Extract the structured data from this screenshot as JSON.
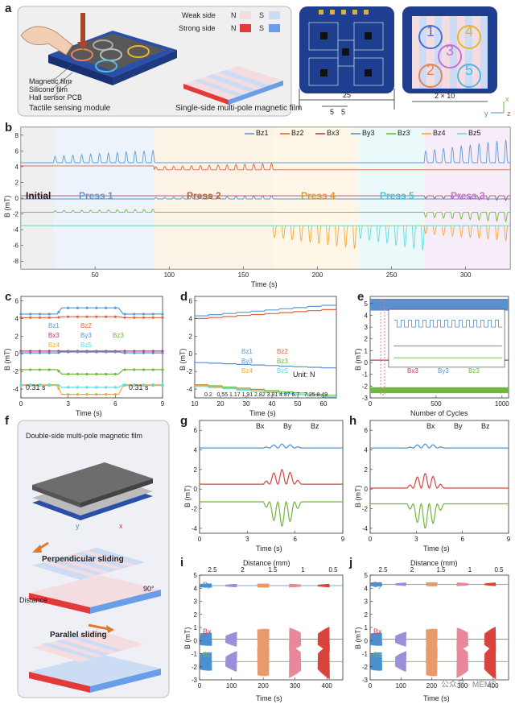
{
  "panel_a": {
    "letter": "a",
    "chip_numbers": [
      "1",
      "2",
      "3",
      "4",
      "5"
    ],
    "module_labels": [
      "Magnetic film",
      "Silicone film",
      "Hall sensor PCB"
    ],
    "module_caption": "Tactile sensing module",
    "legend_weak": "Weak side",
    "legend_strong": "Strong side",
    "pole_n": "N",
    "pole_s": "S",
    "film_caption": "Single-side multi-pole magnetic film",
    "dim_25": "25",
    "dim_5a": "5",
    "dim_5b": "5",
    "dim_2x10": "2 × 10",
    "axis_y": "y",
    "axis_x": "x",
    "axis_z": "z"
  },
  "panel_b": {
    "letter": "b",
    "legend": [
      "Bz1",
      "Bz2",
      "Bx3",
      "By3",
      "Bz3",
      "Bz4",
      "Bz5"
    ],
    "phases": [
      "Initial",
      "Press 1",
      "Press 2",
      "Press 4",
      "Press 5",
      "Press 3"
    ],
    "ylabel": "B (mT)",
    "xlabel": "Time (s)",
    "yticks": [
      "8",
      "6",
      "4",
      "2",
      "0",
      "-2",
      "-4",
      "-6",
      "-8"
    ],
    "xticks": [
      "50",
      "100",
      "150",
      "200",
      "250",
      "300"
    ]
  },
  "panel_c": {
    "letter": "c",
    "legend": [
      "Bz1",
      "Bz2",
      "Bx3",
      "By3",
      "Bz3",
      "Bz4",
      "Bz5"
    ],
    "ann_left": "0.31 s",
    "ann_right": "0.31 s",
    "ylabel": "B (mT)",
    "xlabel": "Time (s)",
    "yticks": [
      "6",
      "4",
      "2",
      "0",
      "-2",
      "-4"
    ],
    "xticks": [
      "0",
      "3",
      "6",
      "9"
    ]
  },
  "panel_d": {
    "letter": "d",
    "legend": [
      "Bz1",
      "Bz2",
      "By3",
      "Bz3",
      "Bz4",
      "Bz5"
    ],
    "unit": "Unit: N",
    "force_values": [
      "0.2",
      "0.55",
      "1.17",
      "1.91",
      "2.82",
      "3.81",
      "4.87",
      "6.7",
      "7.25",
      "8.49"
    ],
    "ylabel": "B (mT)",
    "xlabel": "Time (s)",
    "yticks": [
      "6",
      "4",
      "2",
      "0",
      "-2",
      "-4"
    ],
    "xticks": [
      "10",
      "20",
      "30",
      "40",
      "50",
      "60"
    ]
  },
  "panel_e": {
    "letter": "e",
    "legend": [
      "Bx3",
      "By3",
      "Bz3"
    ],
    "ylabel": "B (mT)",
    "xlabel": "Number of Cycles",
    "yticks": [
      "5",
      "4",
      "3",
      "2",
      "1",
      "0",
      "-1",
      "-2",
      "-3"
    ],
    "xticks": [
      "0",
      "500",
      "1000"
    ],
    "inset_yticks": [
      "6",
      "4",
      "2",
      "0",
      "-2"
    ]
  },
  "panel_f": {
    "letter": "f",
    "title_film": "Double-side multi-pole magnetic film",
    "title_perp": "Perpendicular sliding",
    "title_par": "Parallel sliding",
    "distance": "Distance",
    "angle": "90°",
    "axis_y": "y",
    "axis_x": "x"
  },
  "panel_g": {
    "letter": "g",
    "legend": [
      "Bx",
      "By",
      "Bz"
    ],
    "ylabel": "B (mT)",
    "xlabel": "Time (s)",
    "yticks": [
      "6",
      "4",
      "2",
      "0",
      "-2",
      "-4"
    ],
    "xticks": [
      "0",
      "3",
      "6",
      "9"
    ]
  },
  "panel_h": {
    "letter": "h",
    "legend": [
      "Bx",
      "By",
      "Bz"
    ],
    "ylabel": "B (mT)",
    "xlabel": "Time (s)",
    "yticks": [
      "6",
      "4",
      "2",
      "0",
      "-2",
      "-4"
    ],
    "xticks": [
      "0",
      "3",
      "6",
      "9"
    ]
  },
  "panel_i": {
    "letter": "i",
    "top_label": "Distance (mm)",
    "top_ticks": [
      "2.5",
      "2",
      "1.5",
      "1",
      "0.5"
    ],
    "series_labels": [
      "By",
      "Bx",
      "Bz"
    ],
    "ylabel": "B (mT)",
    "xlabel": "Time (s)",
    "yticks": [
      "5",
      "4",
      "3",
      "2",
      "1",
      "0",
      "-1",
      "-2",
      "-3"
    ],
    "xticks": [
      "0",
      "100",
      "200",
      "300",
      "400"
    ]
  },
  "panel_j": {
    "letter": "j",
    "top_label": "Distance (mm)",
    "top_ticks": [
      "2.5",
      "2",
      "1.5",
      "1",
      "0.5"
    ],
    "series_labels": [
      "By",
      "Bx",
      "Bz"
    ],
    "ylabel": "B (mT)",
    "xlabel": "Time (s)",
    "yticks": [
      "5",
      "4",
      "3",
      "2",
      "1",
      "0",
      "-1",
      "-2",
      "-3"
    ],
    "xticks": [
      "0",
      "100",
      "200",
      "300",
      "400"
    ],
    "watermark": "公众号 · MEMS"
  },
  "colors": {
    "Bz1": "#5b9bd5",
    "Bz2": "#e0643c",
    "Bx3": "#b83a6e",
    "By3": "#5a8fd0",
    "Bz3": "#6fb83c",
    "Bz4": "#f0a93c",
    "Bz5": "#5fdce0",
    "Bx": "#d9433c",
    "By": "#4a8fd0",
    "Bz": "#6fb83c",
    "pcb": "#1e3f8f",
    "weak_n": "#f4dde0",
    "weak_s": "#cbdcf4",
    "strong_n": "#e23a3a",
    "strong_s": "#6a9ee8"
  },
  "chart_data": [
    {
      "panel": "b",
      "type": "line",
      "x_range": [
        0,
        330
      ],
      "ylim": [
        -9,
        9
      ],
      "series": [
        {
          "name": "Bz1",
          "baseline": 4.5
        },
        {
          "name": "Bz2",
          "baseline": 4.1
        },
        {
          "name": "Bx3",
          "baseline": 0.3
        },
        {
          "name": "By3",
          "baseline": -0.1
        },
        {
          "name": "Bz3",
          "baseline": -1.8
        },
        {
          "name": "Bz4",
          "baseline": -3.5
        },
        {
          "name": "Bz5",
          "baseline": -3.5
        }
      ]
    },
    {
      "panel": "c",
      "type": "line",
      "x_range": [
        0,
        9
      ],
      "ylim": [
        -5,
        6.5
      ],
      "series": [
        {
          "name": "Bz1",
          "values": [
            4.5,
            5.2
          ]
        },
        {
          "name": "Bz2",
          "values": [
            4.1,
            4.2
          ]
        },
        {
          "name": "Bx3",
          "values": [
            0.3,
            0.3
          ]
        },
        {
          "name": "By3",
          "values": [
            0.1,
            0.2
          ]
        },
        {
          "name": "Bz3",
          "values": [
            -1.8,
            -2.3
          ]
        },
        {
          "name": "Bz4",
          "values": [
            -3.6,
            -4.6
          ]
        },
        {
          "name": "Bz5",
          "values": [
            -3.5,
            -3.8
          ]
        }
      ]
    },
    {
      "panel": "d",
      "type": "line",
      "x_range": [
        10,
        65
      ],
      "ylim": [
        -5,
        6.5
      ],
      "series": [
        {
          "name": "Bz1",
          "values": [
            4.3,
            5.5
          ]
        },
        {
          "name": "Bz2",
          "values": [
            4.0,
            5.0
          ]
        },
        {
          "name": "By3",
          "values": [
            -1.0,
            -1.6
          ]
        },
        {
          "name": "Bz3",
          "values": [
            -3.5,
            -4.7
          ]
        },
        {
          "name": "Bz4",
          "values": [
            -3.6,
            -4.9
          ]
        },
        {
          "name": "Bz5",
          "values": [
            -3.7,
            -4.9
          ]
        }
      ]
    },
    {
      "panel": "e",
      "type": "line",
      "x_range": [
        0,
        1050
      ],
      "ylim": [
        -3,
        5.6
      ],
      "series": [
        {
          "name": "Bx3",
          "values": [
            0.2
          ]
        },
        {
          "name": "By3",
          "values": [
            4.9
          ]
        },
        {
          "name": "Bz3",
          "values": [
            -2.3
          ]
        }
      ]
    },
    {
      "panel": "g",
      "type": "line",
      "x_range": [
        0,
        9
      ],
      "ylim": [
        -4.5,
        7
      ],
      "series": [
        {
          "name": "Bx",
          "baseline": 0.5
        },
        {
          "name": "By",
          "baseline": 4.2
        },
        {
          "name": "Bz",
          "baseline": -1.3
        }
      ]
    },
    {
      "panel": "h",
      "type": "line",
      "x_range": [
        0,
        9
      ],
      "ylim": [
        -4.5,
        7
      ],
      "series": [
        {
          "name": "Bx",
          "baseline": 0.1
        },
        {
          "name": "By",
          "baseline": 4.2
        },
        {
          "name": "Bz",
          "baseline": -1.5
        }
      ]
    },
    {
      "panel": "i",
      "type": "line",
      "x_range": [
        0,
        450
      ],
      "ylim": [
        -3,
        5
      ],
      "series": [
        {
          "name": "By",
          "baseline": 4.2
        },
        {
          "name": "Bx",
          "baseline": 0.1
        },
        {
          "name": "Bz",
          "baseline": -1.6
        }
      ]
    },
    {
      "panel": "j",
      "type": "line",
      "x_range": [
        0,
        450
      ],
      "ylim": [
        -3,
        5
      ],
      "series": [
        {
          "name": "By",
          "baseline": 4.3
        },
        {
          "name": "Bx",
          "baseline": 0.1
        },
        {
          "name": "Bz",
          "baseline": -1.6
        }
      ]
    }
  ]
}
